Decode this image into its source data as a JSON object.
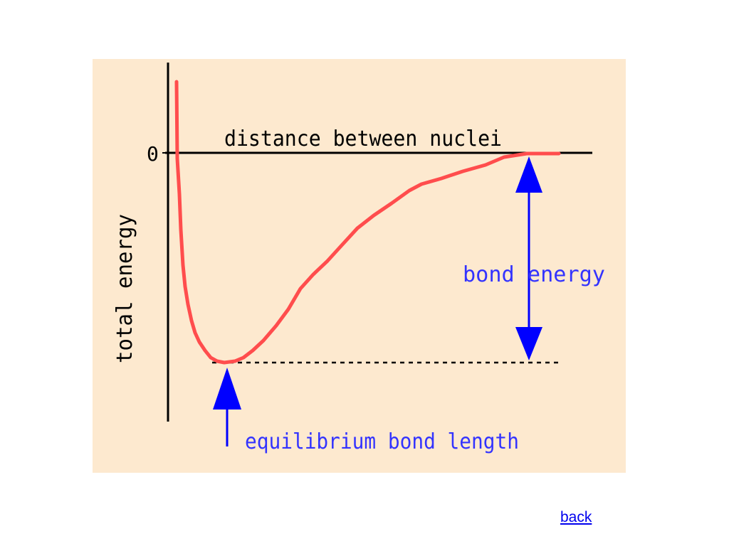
{
  "diagram": {
    "zero_label": "0",
    "x_axis_label": "distance between nuclei",
    "y_axis_label": "total energy",
    "bond_energy_label": "bond energy",
    "equilibrium_label": "equilibrium bond length",
    "colors": {
      "background": "#fde9cf",
      "curve": "#ff4d4d",
      "axis": "#000000",
      "arrow": "#0000ff",
      "annotation_text": "#3333ff"
    }
  },
  "navigation": {
    "back_label": "back"
  }
}
